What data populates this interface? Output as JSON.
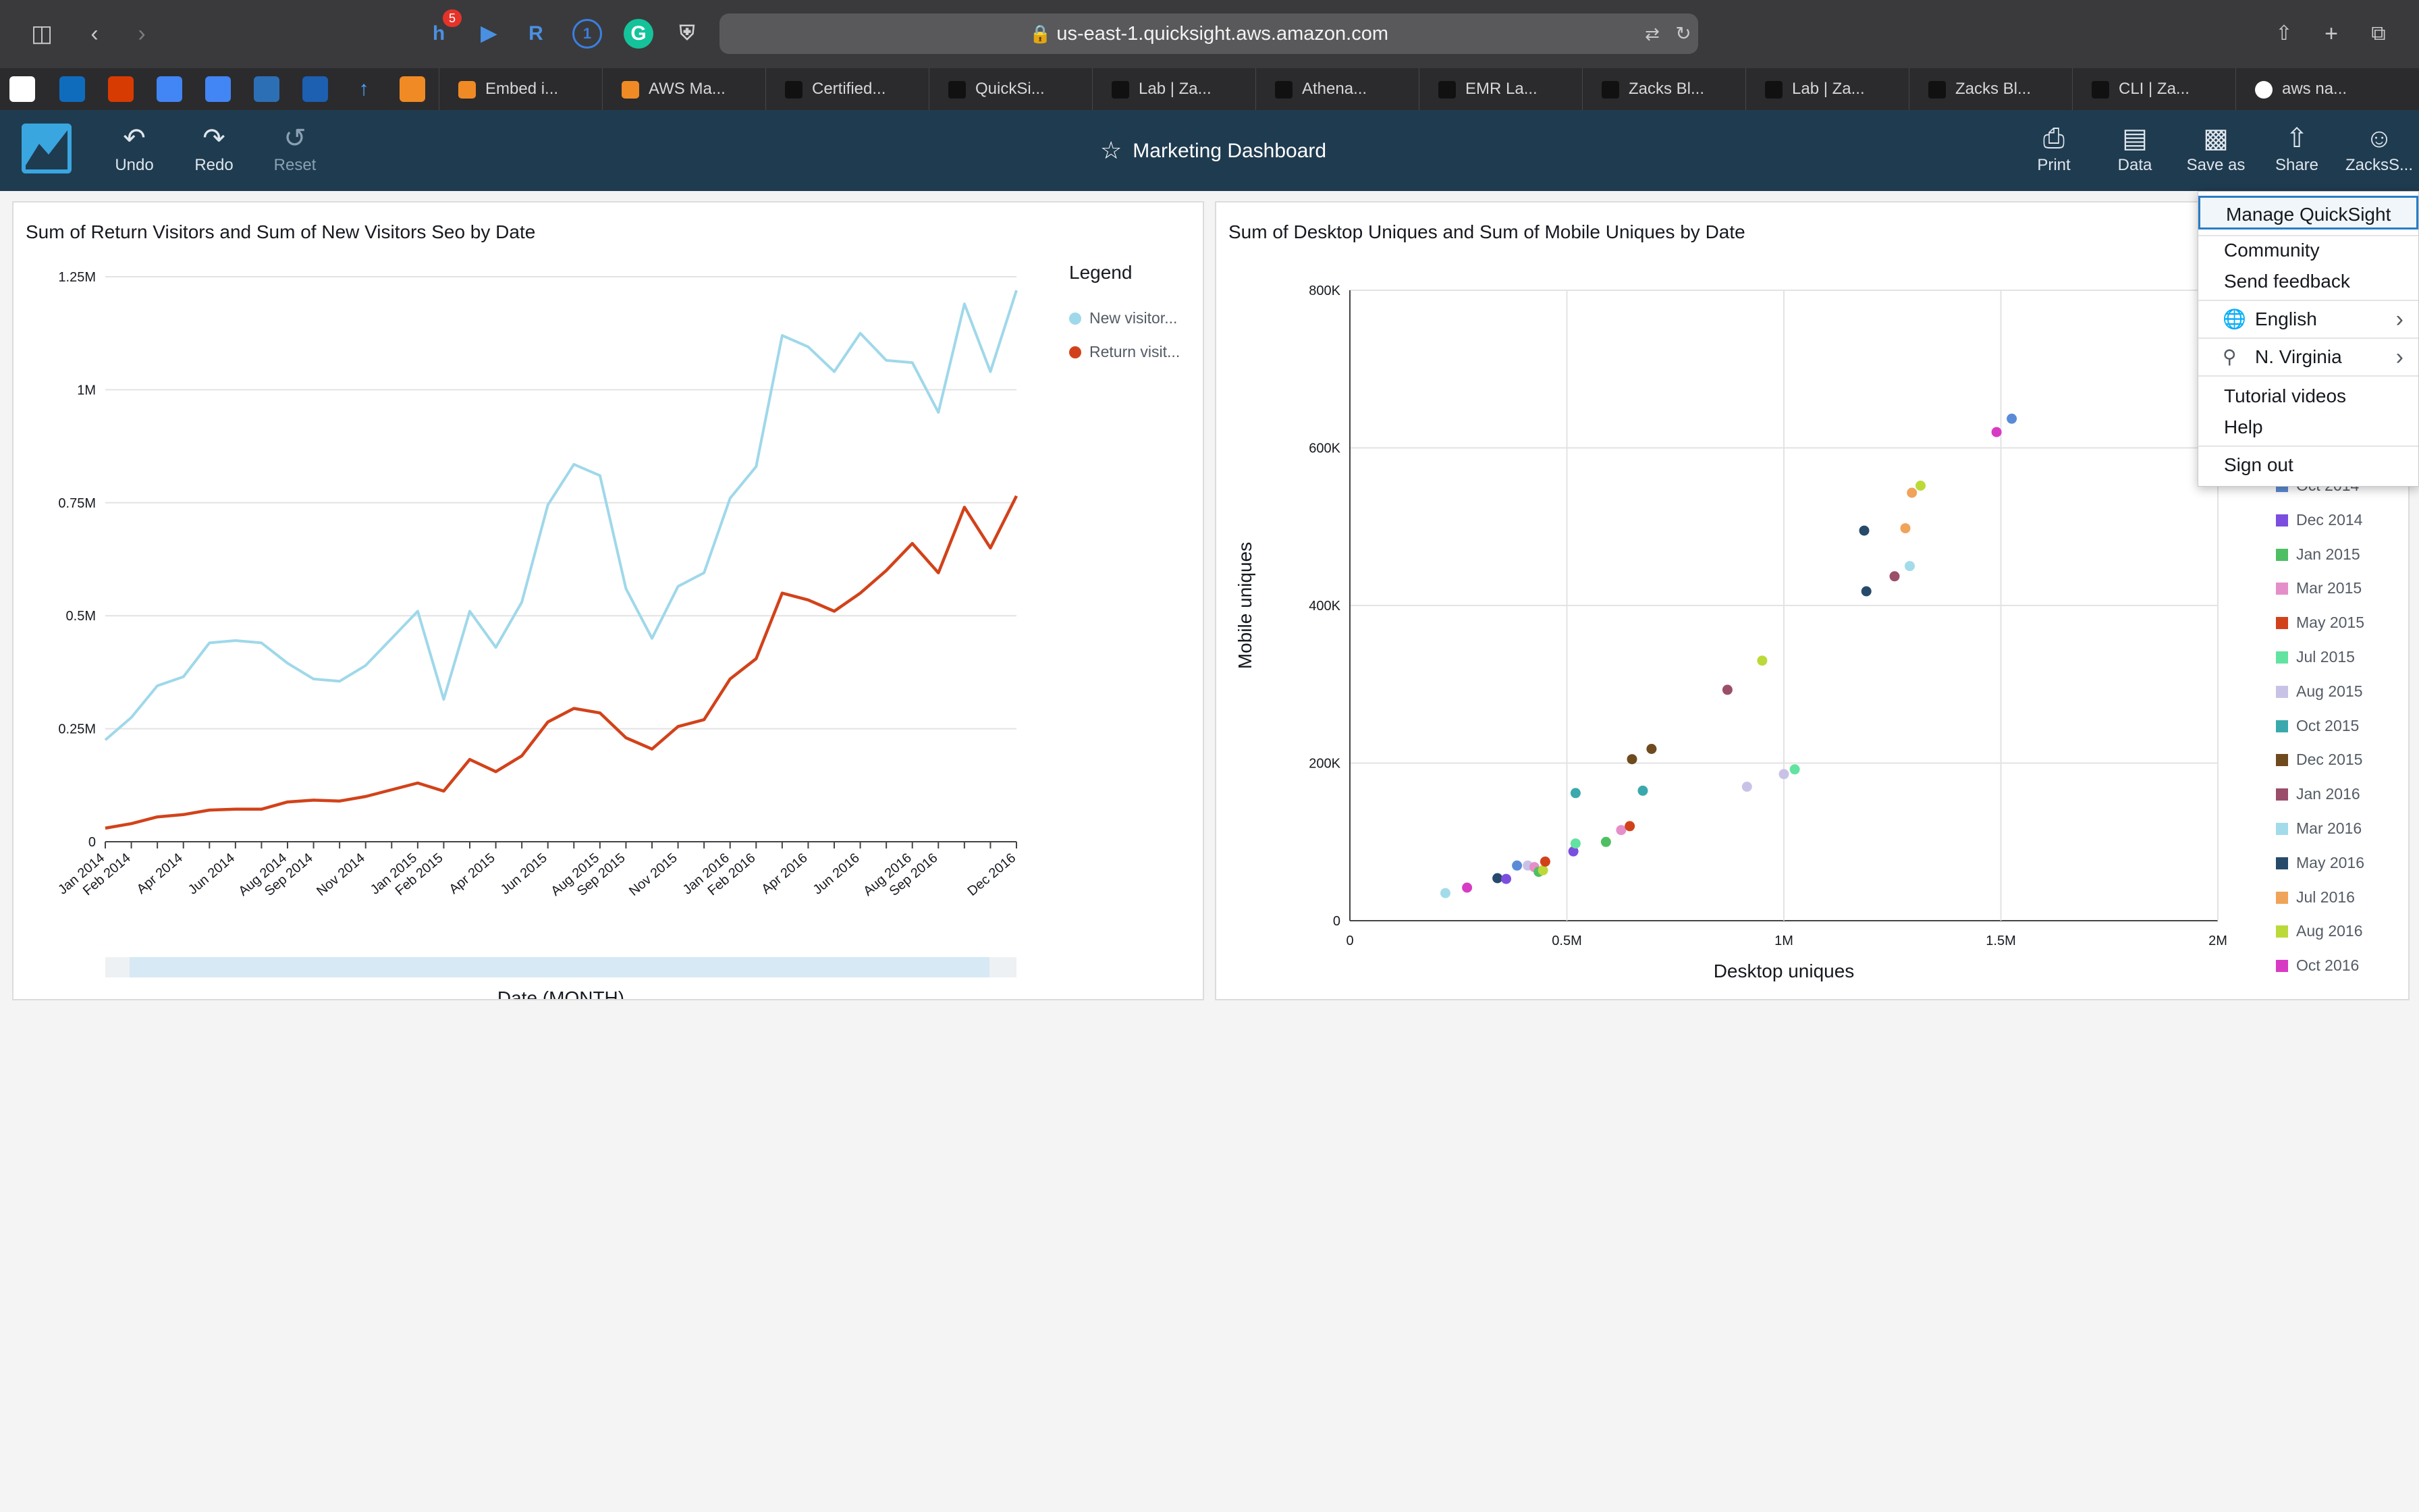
{
  "browser": {
    "url": "us-east-1.quicksight.aws.amazon.com",
    "badge_count": "5",
    "tabs": [
      {
        "label": "Embed i..."
      },
      {
        "label": "AWS Ma..."
      },
      {
        "label": "Certified..."
      },
      {
        "label": "QuickSi..."
      },
      {
        "label": "Lab | Za..."
      },
      {
        "label": "Athena..."
      },
      {
        "label": "EMR La..."
      },
      {
        "label": "Zacks Bl..."
      },
      {
        "label": "Lab | Za..."
      },
      {
        "label": "Zacks Bl..."
      },
      {
        "label": "CLI | Za..."
      },
      {
        "label": "aws na..."
      }
    ]
  },
  "header": {
    "undo": "Undo",
    "redo": "Redo",
    "reset": "Reset",
    "title": "Marketing Dashboard",
    "print": "Print",
    "data": "Data",
    "save_as": "Save as",
    "share": "Share",
    "user": "ZacksS..."
  },
  "line_panel": {
    "title": "Sum of Return Visitors and Sum of New Visitors Seo by Date",
    "legend_title": "Legend",
    "legend": [
      {
        "label": "New visitor...",
        "color": "#9fd8ea"
      },
      {
        "label": "Return visit...",
        "color": "#d2421a"
      }
    ]
  },
  "scatter_panel": {
    "title": "Sum of Desktop Uniques and Sum of Mobile Uniques by Date"
  },
  "menu": {
    "manage": "Manage QuickSight",
    "community": "Community",
    "feedback": "Send feedback",
    "language": "English",
    "region": "N. Virginia",
    "videos": "Tutorial videos",
    "help": "Help",
    "signout": "Sign out"
  },
  "chart_data": [
    {
      "type": "line",
      "title": "Sum of Return Visitors and Sum of New Visitors Seo by Date",
      "xlabel": "Date (MONTH)",
      "ylabel": "",
      "ylim": [
        0,
        1250000
      ],
      "yticks": [
        0,
        250000,
        500000,
        750000,
        1000000,
        1250000
      ],
      "ytick_labels": [
        "0",
        "0.25M",
        "0.5M",
        "0.75M",
        "1M",
        "1.25M"
      ],
      "x": [
        "Jan 2014",
        "Feb 2014",
        "Mar 2014",
        "Apr 2014",
        "May 2014",
        "Jun 2014",
        "Jul 2014",
        "Aug 2014",
        "Sep 2014",
        "Oct 2014",
        "Nov 2014",
        "Dec 2014",
        "Jan 2015",
        "Feb 2015",
        "Mar 2015",
        "Apr 2015",
        "May 2015",
        "Jun 2015",
        "Jul 2015",
        "Aug 2015",
        "Sep 2015",
        "Oct 2015",
        "Nov 2015",
        "Dec 2015",
        "Jan 2016",
        "Feb 2016",
        "Mar 2016",
        "Apr 2016",
        "May 2016",
        "Jun 2016",
        "Jul 2016",
        "Aug 2016",
        "Sep 2016",
        "Oct 2016",
        "Nov 2016",
        "Dec 2016"
      ],
      "x_tick_labels": [
        "Jan 2014",
        "Feb 2014",
        "Apr 2014",
        "Jun 2014",
        "Aug 2014",
        "Sep 2014",
        "Nov 2014",
        "Jan 2015",
        "Feb 2015",
        "Apr 2015",
        "Jun 2015",
        "Aug 2015",
        "Sep 2015",
        "Nov 2015",
        "Jan 2016",
        "Feb 2016",
        "Apr 2016",
        "Jun 2016",
        "Aug 2016",
        "Sep 2016",
        "Dec 2016"
      ],
      "grid": true,
      "legend_position": "right",
      "series": [
        {
          "name": "New visitor...",
          "color": "#9fd8ea",
          "values": [
            225000,
            275000,
            345000,
            365000,
            440000,
            445000,
            440000,
            395000,
            360000,
            355000,
            390000,
            450000,
            510000,
            315000,
            510000,
            430000,
            530000,
            745000,
            835000,
            810000,
            560000,
            450000,
            565000,
            595000,
            760000,
            830000,
            1120000,
            1095000,
            1040000,
            1125000,
            1065000,
            1060000,
            950000,
            1190000,
            1040000,
            1220000
          ]
        },
        {
          "name": "Return visit...",
          "color": "#d2421a",
          "values": [
            30000,
            40000,
            55000,
            60000,
            70000,
            72000,
            72000,
            88000,
            92000,
            90000,
            100000,
            115000,
            130000,
            112000,
            182000,
            155000,
            190000,
            265000,
            295000,
            285000,
            230000,
            205000,
            255000,
            270000,
            360000,
            405000,
            550000,
            535000,
            510000,
            550000,
            600000,
            660000,
            595000,
            740000,
            650000,
            765000
          ]
        }
      ]
    },
    {
      "type": "scatter",
      "title": "Sum of Desktop Uniques and Sum of Mobile Uniques by Date",
      "xlabel": "Desktop uniques",
      "ylabel": "Mobile uniques",
      "xlim": [
        0,
        2000000
      ],
      "ylim": [
        0,
        800000
      ],
      "xticks": [
        0,
        500000,
        1000000,
        1500000,
        2000000
      ],
      "xtick_labels": [
        "0",
        "0.5M",
        "1M",
        "1.5M",
        "2M"
      ],
      "yticks": [
        0,
        200000,
        400000,
        600000,
        800000
      ],
      "ytick_labels": [
        "0",
        "200K",
        "400K",
        "600K",
        "800K"
      ],
      "grid": true,
      "legend_position": "right",
      "legend": [
        {
          "label": "Oct 2014",
          "color": "#5a8bd6"
        },
        {
          "label": "Dec 2014",
          "color": "#7b4ee0"
        },
        {
          "label": "Jan 2015",
          "color": "#4fbf63"
        },
        {
          "label": "Mar 2015",
          "color": "#e58fca"
        },
        {
          "label": "May 2015",
          "color": "#d2421a"
        },
        {
          "label": "Jul 2015",
          "color": "#62e3a1"
        },
        {
          "label": "Aug 2015",
          "color": "#c8c3e6"
        },
        {
          "label": "Oct 2015",
          "color": "#3aa9ad"
        },
        {
          "label": "Dec 2015",
          "color": "#6e4a1e"
        },
        {
          "label": "Jan 2016",
          "color": "#9b4e6a"
        },
        {
          "label": "Mar 2016",
          "color": "#a3dbeb"
        },
        {
          "label": "May 2016",
          "color": "#274a6b"
        },
        {
          "label": "Jul 2016",
          "color": "#f0a35a"
        },
        {
          "label": "Aug 2016",
          "color": "#bcd93a"
        },
        {
          "label": "Oct 2016",
          "color": "#d83bc3"
        }
      ],
      "points": [
        {
          "x": 220000,
          "y": 35000,
          "color": "#a3dbeb"
        },
        {
          "x": 270000,
          "y": 42000,
          "color": "#d83bc3"
        },
        {
          "x": 340000,
          "y": 54000,
          "color": "#274a6b"
        },
        {
          "x": 360000,
          "y": 53000,
          "color": "#7b4ee0"
        },
        {
          "x": 385000,
          "y": 70000,
          "color": "#5a8bd6"
        },
        {
          "x": 410000,
          "y": 70000,
          "color": "#c8c3e6"
        },
        {
          "x": 425000,
          "y": 68000,
          "color": "#e58fca"
        },
        {
          "x": 435000,
          "y": 62000,
          "color": "#4fbf63"
        },
        {
          "x": 445000,
          "y": 64000,
          "color": "#bcd93a"
        },
        {
          "x": 450000,
          "y": 75000,
          "color": "#d2421a"
        },
        {
          "x": 515000,
          "y": 88000,
          "color": "#7b4ee0"
        },
        {
          "x": 520000,
          "y": 98000,
          "color": "#62e3a1"
        },
        {
          "x": 520000,
          "y": 162000,
          "color": "#3aa9ad"
        },
        {
          "x": 590000,
          "y": 100000,
          "color": "#4fbf63"
        },
        {
          "x": 625000,
          "y": 115000,
          "color": "#e58fca"
        },
        {
          "x": 645000,
          "y": 120000,
          "color": "#d2421a"
        },
        {
          "x": 650000,
          "y": 205000,
          "color": "#6e4a1e"
        },
        {
          "x": 675000,
          "y": 165000,
          "color": "#3aa9ad"
        },
        {
          "x": 695000,
          "y": 218000,
          "color": "#6e4a1e"
        },
        {
          "x": 870000,
          "y": 293000,
          "color": "#9b4e6a"
        },
        {
          "x": 915000,
          "y": 170000,
          "color": "#c8c3e6"
        },
        {
          "x": 950000,
          "y": 330000,
          "color": "#bcd93a"
        },
        {
          "x": 1000000,
          "y": 186000,
          "color": "#c8c3e6"
        },
        {
          "x": 1025000,
          "y": 192000,
          "color": "#62e3a1"
        },
        {
          "x": 1185000,
          "y": 495000,
          "color": "#274a6b"
        },
        {
          "x": 1190000,
          "y": 418000,
          "color": "#274a6b"
        },
        {
          "x": 1255000,
          "y": 437000,
          "color": "#9b4e6a"
        },
        {
          "x": 1280000,
          "y": 498000,
          "color": "#f0a35a"
        },
        {
          "x": 1290000,
          "y": 450000,
          "color": "#a3dbeb"
        },
        {
          "x": 1295000,
          "y": 543000,
          "color": "#f0a35a"
        },
        {
          "x": 1315000,
          "y": 552000,
          "color": "#bcd93a"
        },
        {
          "x": 1490000,
          "y": 620000,
          "color": "#d83bc3"
        },
        {
          "x": 1525000,
          "y": 637000,
          "color": "#5a8bd6"
        }
      ]
    }
  ]
}
